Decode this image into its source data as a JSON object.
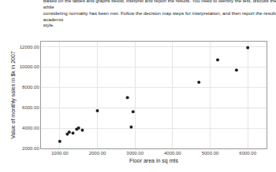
{
  "chart_data": {
    "type": "scatter",
    "title": "Based on the tables and graphs below, interpret and report the results. You need to identify the test, discuss the assumptions while\nconsidering normality has been met. Follow the decision map steps for interpretation, and then report the results in an academic\nstyle.",
    "xlabel": "Floor area in sq mts",
    "ylabel": "Value of monthly sales in $k in 2007",
    "x": [
      1000,
      1200,
      1250,
      1350,
      1450,
      1500,
      1600,
      2000,
      2800,
      2900,
      2950,
      4700,
      5200,
      5700,
      6000
    ],
    "values": [
      2700,
      3400,
      3600,
      3500,
      3900,
      4000,
      3800,
      5700,
      7000,
      4100,
      5600,
      8500,
      10700,
      9700,
      11900
    ],
    "color": "#222222",
    "xlim": [
      500,
      6500
    ],
    "ylim": [
      2000,
      12500
    ],
    "xticks": [
      {
        "value": 1000,
        "label": "1000.00"
      },
      {
        "value": 2000,
        "label": "2000.00"
      },
      {
        "value": 3000,
        "label": "3000.00"
      },
      {
        "value": 4000,
        "label": "4000.00"
      },
      {
        "value": 5000,
        "label": "5000.00"
      },
      {
        "value": 6000,
        "label": "6000.00"
      }
    ],
    "yticks": [
      {
        "value": 2000,
        "label": "2000.00"
      },
      {
        "value": 4000,
        "label": "4000.00"
      },
      {
        "value": 6000,
        "label": "6000.00"
      },
      {
        "value": 8000,
        "label": "8000.00"
      },
      {
        "value": 10000,
        "label": "10000.00"
      },
      {
        "value": 12000,
        "label": "12000.00"
      }
    ],
    "grid": true
  }
}
